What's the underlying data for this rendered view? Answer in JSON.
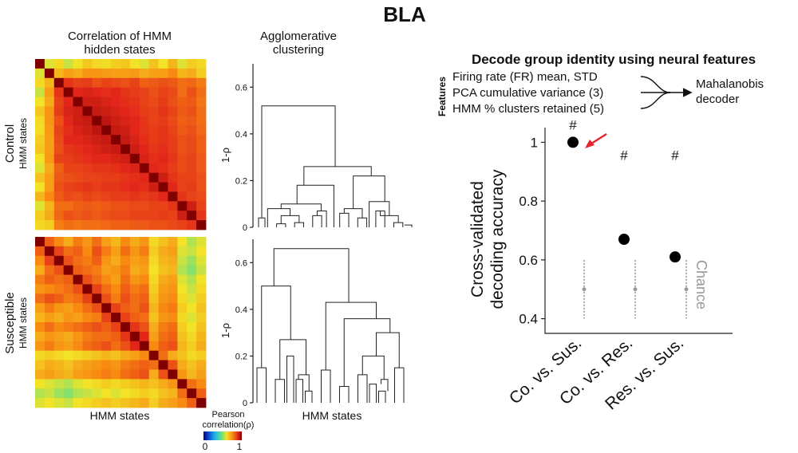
{
  "figure": {
    "title": "BLA",
    "heatmap_title_line1": "Correlation of HMM",
    "heatmap_title_line2": "hidden states",
    "dendro_title_line1": "Agglomerative",
    "dendro_title_line2": "clustering",
    "control_label_line1": "Control",
    "control_label_line2": "HMM states",
    "susceptible_label_line1": "Susceptible",
    "susceptible_label_line2": "HMM states",
    "heatmap_xlabel": "HMM states",
    "dendro_xlabel": "HMM states",
    "colorbar_label_line1": "Pearson",
    "colorbar_label_line2": "correlation(ρ)",
    "colorbar_min": "0",
    "colorbar_max": "1"
  },
  "decoder": {
    "title": "Decode group identity using neural features",
    "features_label": "Features",
    "features": [
      "Firing rate (FR) mean, STD",
      "PCA cumulative variance (3)",
      "HMM % clusters retained (5)"
    ],
    "output_line1": "Mahalanobis",
    "output_line2": "decoder"
  },
  "colors": {
    "point": "#000000",
    "chance": "#999999",
    "arrow": "#e8232a",
    "colormap": [
      "#00007f",
      "#0b4fd6",
      "#1fb4e8",
      "#5ee08a",
      "#f2e326",
      "#f88a12",
      "#e2271a",
      "#800000"
    ]
  },
  "chart_data": [
    {
      "type": "heatmap",
      "name": "control",
      "n_states": 18,
      "value_range": [
        0,
        1
      ],
      "rows": [
        [
          1.0,
          0.58,
          0.62,
          0.56,
          0.6,
          0.65,
          0.62,
          0.61,
          0.64,
          0.65,
          0.6,
          0.58,
          0.66,
          0.6,
          0.68,
          0.58,
          0.64,
          0.62
        ],
        [
          0.58,
          1.0,
          0.68,
          0.72,
          0.7,
          0.74,
          0.74,
          0.73,
          0.72,
          0.72,
          0.73,
          0.7,
          0.72,
          0.72,
          0.76,
          0.68,
          0.7,
          0.64
        ],
        [
          0.62,
          0.68,
          1.0,
          0.88,
          0.86,
          0.87,
          0.84,
          0.86,
          0.85,
          0.84,
          0.86,
          0.82,
          0.83,
          0.84,
          0.83,
          0.8,
          0.81,
          0.78
        ],
        [
          0.56,
          0.72,
          0.88,
          1.0,
          0.9,
          0.91,
          0.9,
          0.89,
          0.9,
          0.88,
          0.87,
          0.86,
          0.84,
          0.86,
          0.85,
          0.8,
          0.84,
          0.8
        ],
        [
          0.6,
          0.7,
          0.86,
          0.9,
          1.0,
          0.92,
          0.92,
          0.91,
          0.9,
          0.89,
          0.88,
          0.86,
          0.85,
          0.87,
          0.84,
          0.82,
          0.83,
          0.79
        ],
        [
          0.65,
          0.74,
          0.87,
          0.91,
          0.92,
          1.0,
          0.93,
          0.92,
          0.91,
          0.9,
          0.89,
          0.87,
          0.86,
          0.88,
          0.86,
          0.83,
          0.84,
          0.8
        ],
        [
          0.62,
          0.74,
          0.84,
          0.9,
          0.92,
          0.93,
          1.0,
          0.94,
          0.92,
          0.91,
          0.9,
          0.88,
          0.86,
          0.87,
          0.85,
          0.82,
          0.83,
          0.8
        ],
        [
          0.61,
          0.73,
          0.86,
          0.89,
          0.91,
          0.92,
          0.94,
          1.0,
          0.93,
          0.92,
          0.9,
          0.88,
          0.87,
          0.88,
          0.86,
          0.83,
          0.84,
          0.81
        ],
        [
          0.64,
          0.72,
          0.85,
          0.9,
          0.9,
          0.91,
          0.92,
          0.93,
          1.0,
          0.93,
          0.91,
          0.89,
          0.87,
          0.88,
          0.87,
          0.84,
          0.85,
          0.82
        ],
        [
          0.65,
          0.72,
          0.84,
          0.88,
          0.89,
          0.9,
          0.91,
          0.92,
          0.93,
          1.0,
          0.92,
          0.9,
          0.88,
          0.89,
          0.87,
          0.84,
          0.85,
          0.82
        ],
        [
          0.6,
          0.73,
          0.86,
          0.87,
          0.88,
          0.89,
          0.9,
          0.9,
          0.91,
          0.92,
          1.0,
          0.91,
          0.89,
          0.9,
          0.88,
          0.85,
          0.86,
          0.83
        ],
        [
          0.58,
          0.7,
          0.82,
          0.86,
          0.86,
          0.87,
          0.88,
          0.88,
          0.89,
          0.9,
          0.91,
          1.0,
          0.9,
          0.89,
          0.87,
          0.85,
          0.86,
          0.83
        ],
        [
          0.66,
          0.72,
          0.83,
          0.84,
          0.85,
          0.86,
          0.86,
          0.87,
          0.87,
          0.88,
          0.89,
          0.9,
          1.0,
          0.92,
          0.88,
          0.86,
          0.86,
          0.84
        ],
        [
          0.6,
          0.72,
          0.84,
          0.86,
          0.87,
          0.88,
          0.87,
          0.88,
          0.88,
          0.89,
          0.9,
          0.89,
          0.92,
          1.0,
          0.9,
          0.86,
          0.87,
          0.84
        ],
        [
          0.68,
          0.76,
          0.83,
          0.85,
          0.84,
          0.86,
          0.85,
          0.86,
          0.87,
          0.87,
          0.88,
          0.87,
          0.88,
          0.9,
          1.0,
          0.88,
          0.86,
          0.85
        ],
        [
          0.58,
          0.68,
          0.8,
          0.8,
          0.82,
          0.83,
          0.82,
          0.83,
          0.84,
          0.84,
          0.85,
          0.85,
          0.86,
          0.86,
          0.88,
          1.0,
          0.92,
          0.86
        ],
        [
          0.64,
          0.7,
          0.81,
          0.84,
          0.83,
          0.84,
          0.83,
          0.84,
          0.85,
          0.85,
          0.86,
          0.86,
          0.86,
          0.87,
          0.86,
          0.92,
          1.0,
          0.88
        ],
        [
          0.62,
          0.64,
          0.78,
          0.8,
          0.79,
          0.8,
          0.8,
          0.81,
          0.82,
          0.82,
          0.83,
          0.83,
          0.84,
          0.84,
          0.85,
          0.86,
          0.88,
          1.0
        ]
      ]
    },
    {
      "type": "heatmap",
      "name": "susceptible",
      "n_states": 18,
      "value_range": [
        0,
        1
      ],
      "rows": [
        [
          1.0,
          0.82,
          0.76,
          0.7,
          0.78,
          0.74,
          0.8,
          0.72,
          0.68,
          0.76,
          0.7,
          0.74,
          0.62,
          0.66,
          0.7,
          0.6,
          0.54,
          0.58
        ],
        [
          0.82,
          1.0,
          0.86,
          0.8,
          0.82,
          0.76,
          0.84,
          0.78,
          0.72,
          0.8,
          0.74,
          0.78,
          0.64,
          0.7,
          0.72,
          0.58,
          0.56,
          0.6
        ],
        [
          0.76,
          0.86,
          1.0,
          0.84,
          0.8,
          0.78,
          0.82,
          0.74,
          0.7,
          0.76,
          0.72,
          0.74,
          0.62,
          0.68,
          0.7,
          0.56,
          0.52,
          0.58
        ],
        [
          0.7,
          0.8,
          0.84,
          1.0,
          0.82,
          0.8,
          0.78,
          0.72,
          0.74,
          0.78,
          0.7,
          0.72,
          0.6,
          0.66,
          0.68,
          0.54,
          0.5,
          0.56
        ],
        [
          0.78,
          0.82,
          0.8,
          0.82,
          1.0,
          0.84,
          0.8,
          0.76,
          0.72,
          0.8,
          0.74,
          0.76,
          0.62,
          0.7,
          0.72,
          0.58,
          0.54,
          0.6
        ],
        [
          0.74,
          0.76,
          0.78,
          0.8,
          0.84,
          1.0,
          0.86,
          0.8,
          0.76,
          0.82,
          0.78,
          0.8,
          0.64,
          0.72,
          0.74,
          0.6,
          0.56,
          0.62
        ],
        [
          0.8,
          0.84,
          0.82,
          0.78,
          0.8,
          0.86,
          1.0,
          0.84,
          0.78,
          0.84,
          0.8,
          0.82,
          0.66,
          0.74,
          0.76,
          0.62,
          0.58,
          0.64
        ],
        [
          0.72,
          0.78,
          0.74,
          0.72,
          0.76,
          0.8,
          0.84,
          1.0,
          0.86,
          0.82,
          0.8,
          0.84,
          0.68,
          0.76,
          0.78,
          0.64,
          0.6,
          0.66
        ],
        [
          0.68,
          0.72,
          0.7,
          0.74,
          0.72,
          0.76,
          0.78,
          0.86,
          1.0,
          0.86,
          0.82,
          0.8,
          0.66,
          0.74,
          0.76,
          0.62,
          0.58,
          0.64
        ],
        [
          0.76,
          0.8,
          0.76,
          0.78,
          0.8,
          0.82,
          0.84,
          0.82,
          0.86,
          1.0,
          0.88,
          0.84,
          0.7,
          0.78,
          0.8,
          0.64,
          0.6,
          0.66
        ],
        [
          0.7,
          0.74,
          0.72,
          0.7,
          0.74,
          0.78,
          0.8,
          0.8,
          0.82,
          0.88,
          1.0,
          0.9,
          0.72,
          0.8,
          0.82,
          0.66,
          0.62,
          0.68
        ],
        [
          0.74,
          0.78,
          0.74,
          0.72,
          0.76,
          0.8,
          0.82,
          0.84,
          0.8,
          0.84,
          0.9,
          1.0,
          0.76,
          0.82,
          0.84,
          0.68,
          0.64,
          0.7
        ],
        [
          0.62,
          0.64,
          0.62,
          0.6,
          0.62,
          0.64,
          0.66,
          0.68,
          0.66,
          0.7,
          0.72,
          0.76,
          1.0,
          0.8,
          0.7,
          0.66,
          0.62,
          0.64
        ],
        [
          0.66,
          0.7,
          0.68,
          0.66,
          0.7,
          0.72,
          0.74,
          0.76,
          0.74,
          0.78,
          0.8,
          0.82,
          0.8,
          1.0,
          0.84,
          0.7,
          0.66,
          0.7
        ],
        [
          0.7,
          0.72,
          0.7,
          0.68,
          0.72,
          0.74,
          0.76,
          0.78,
          0.76,
          0.8,
          0.82,
          0.84,
          0.7,
          0.84,
          1.0,
          0.74,
          0.68,
          0.72
        ],
        [
          0.6,
          0.58,
          0.56,
          0.54,
          0.58,
          0.6,
          0.62,
          0.64,
          0.62,
          0.64,
          0.66,
          0.68,
          0.66,
          0.7,
          0.74,
          1.0,
          0.8,
          0.76
        ],
        [
          0.54,
          0.56,
          0.52,
          0.5,
          0.54,
          0.56,
          0.58,
          0.6,
          0.58,
          0.6,
          0.62,
          0.64,
          0.62,
          0.66,
          0.68,
          0.8,
          1.0,
          0.82
        ],
        [
          0.58,
          0.6,
          0.58,
          0.56,
          0.6,
          0.62,
          0.64,
          0.66,
          0.64,
          0.66,
          0.68,
          0.7,
          0.64,
          0.7,
          0.72,
          0.76,
          0.82,
          1.0
        ]
      ]
    },
    {
      "type": "dendrogram",
      "name": "control",
      "ylabel": "1-ρ",
      "ylim": [
        0,
        0.7
      ],
      "yticks": [
        0,
        0.2,
        0.4,
        0.6
      ],
      "n_leaves": 18,
      "merges": [
        [
          0,
          0,
          0.04
        ],
        [
          2,
          3,
          0.01
        ],
        [
          4,
          5,
          0.02
        ],
        [
          16,
          17,
          0.01
        ],
        [
          1,
          2,
          0.02
        ],
        [
          9,
          10,
          0.05
        ],
        [
          11,
          12,
          0.06
        ],
        [
          14,
          15,
          0.04
        ],
        [
          3,
          4,
          0.05
        ],
        [
          5,
          6,
          0.06
        ],
        [
          7,
          8,
          0.07
        ],
        [
          13,
          14,
          0.08
        ],
        [
          2,
          3,
          0.09
        ],
        [
          3,
          4,
          0.1
        ],
        [
          1,
          2,
          0.08
        ],
        [
          1,
          2,
          0.22
        ],
        [
          1,
          2,
          0.26
        ],
        [
          0,
          1,
          0.52
        ]
      ]
    },
    {
      "type": "dendrogram",
      "name": "susceptible",
      "ylabel": "1-ρ",
      "ylim": [
        0,
        0.7
      ],
      "yticks": [
        0,
        0.2,
        0.4,
        0.6
      ],
      "n_leaves": 18,
      "merges": [
        [
          0,
          0,
          0.15
        ],
        [
          1,
          1,
          0.1
        ],
        [
          2,
          2,
          0.2
        ],
        [
          3,
          3,
          0.1
        ],
        [
          4,
          4,
          0.05
        ],
        [
          5,
          5,
          0.07
        ],
        [
          6,
          6,
          0.14
        ],
        [
          7,
          7,
          0.12
        ],
        [
          8,
          8,
          0.08
        ],
        [
          0,
          1,
          0.5
        ],
        [
          1,
          2,
          0.27
        ],
        [
          2,
          3,
          0.2
        ],
        [
          3,
          4,
          0.12
        ],
        [
          4,
          5,
          0.08
        ],
        [
          0,
          1,
          0.43
        ],
        [
          1,
          2,
          0.36
        ],
        [
          2,
          3,
          0.3
        ],
        [
          0,
          1,
          0.66
        ]
      ]
    },
    {
      "type": "scatter",
      "name": "decoding_accuracy",
      "ylabel_line1": "Cross-validated",
      "ylabel_line2": "decoding accuracy",
      "ylim": [
        0.35,
        1.05
      ],
      "yticks": [
        0.4,
        0.6,
        0.8,
        1
      ],
      "categories": [
        "Co. vs. Sus.",
        "Co. vs. Res.",
        "Res. vs. Sus."
      ],
      "values": [
        1.0,
        0.67,
        0.61
      ],
      "significance": [
        "#",
        "#",
        "#"
      ],
      "chance_mean": [
        0.5,
        0.5,
        0.5
      ],
      "chance_low": [
        0.4,
        0.4,
        0.4
      ],
      "chance_high": [
        0.6,
        0.6,
        0.6
      ],
      "chance_label": "Chance"
    }
  ]
}
